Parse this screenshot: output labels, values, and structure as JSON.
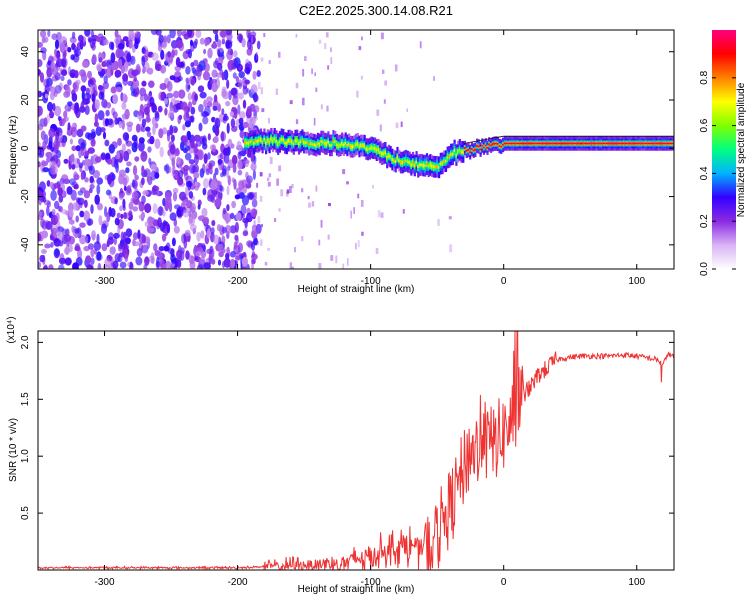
{
  "figure": {
    "title": "C2E2.2025.300.14.08.R21"
  },
  "chart_data": [
    {
      "type": "heatmap",
      "name": "spectrogram",
      "xlabel": "Height of straight line (km)",
      "ylabel": "Frequency (Hz)",
      "xlim": [
        -350,
        128
      ],
      "ylim": [
        -50,
        49
      ],
      "xticks": [
        -300,
        -200,
        -100,
        0,
        100
      ],
      "yticks": [
        -40,
        -20,
        0,
        20,
        40
      ],
      "tone_track": {
        "x": [
          -195,
          -180,
          -160,
          -140,
          -120,
          -100,
          -85,
          -70,
          -60,
          -50,
          -45,
          -38,
          -30,
          -20,
          -10,
          0,
          20,
          40,
          60,
          80,
          100,
          128
        ],
        "y": [
          3,
          3,
          2.5,
          2,
          2,
          0,
          -4,
          -6,
          -7,
          -7,
          -6,
          -2,
          -1,
          0,
          1,
          2,
          2,
          2,
          2,
          2,
          2,
          2
        ]
      },
      "noise_region_x": [
        -350,
        -190
      ],
      "colorbar": {
        "label": "Normalized spectral amplitude",
        "range": [
          0.0,
          1.0
        ],
        "ticks": [
          0.0,
          0.2,
          0.4,
          0.6,
          0.8
        ],
        "tick_labels": [
          "0.0",
          "0.2",
          "0.4",
          "0.6",
          "0.8"
        ],
        "colors": [
          "#ffffff",
          "#d9b3f5",
          "#8a2be2",
          "#3300ff",
          "#00b3ff",
          "#00ff80",
          "#80ff00",
          "#ffff00",
          "#ff8000",
          "#ff0000",
          "#ff0080"
        ]
      }
    },
    {
      "type": "line",
      "name": "snr",
      "xlabel": "Height of straight line (km)",
      "ylabel": "SNR (10 * v/v)",
      "scale_label": "(x10⁴)",
      "xlim": [
        -350,
        128
      ],
      "ylim": [
        0,
        2.1
      ],
      "xticks": [
        -300,
        -200,
        -100,
        0,
        100
      ],
      "yticks": [
        0.5,
        1.0,
        1.5,
        2.0
      ],
      "ytick_labels": [
        "0.5",
        "1.0",
        "1.5",
        "2.0"
      ],
      "series": [
        {
          "name": "SNR",
          "color": "#ee3333",
          "x": [
            -350,
            -300,
            -250,
            -200,
            -180,
            -160,
            -140,
            -120,
            -110,
            -100,
            -90,
            -80,
            -70,
            -60,
            -55,
            -50,
            -45,
            -40,
            -35,
            -30,
            -25,
            -20,
            -15,
            -10,
            -5,
            0,
            5,
            10,
            15,
            20,
            25,
            30,
            35,
            40,
            50,
            60,
            70,
            80,
            90,
            100,
            110,
            115,
            120,
            123,
            128
          ],
          "y": [
            0.02,
            0.02,
            0.02,
            0.02,
            0.03,
            0.04,
            0.05,
            0.06,
            0.1,
            0.12,
            0.18,
            0.2,
            0.22,
            0.18,
            0.15,
            0.3,
            0.45,
            0.55,
            0.7,
            0.9,
            1.05,
            1.05,
            1.1,
            1.1,
            1.15,
            1.2,
            1.3,
            1.4,
            1.55,
            1.6,
            1.7,
            1.75,
            1.8,
            1.85,
            1.87,
            1.88,
            1.88,
            1.88,
            1.89,
            1.88,
            1.86,
            1.85,
            1.8,
            1.9,
            1.87
          ]
        }
      ]
    }
  ]
}
